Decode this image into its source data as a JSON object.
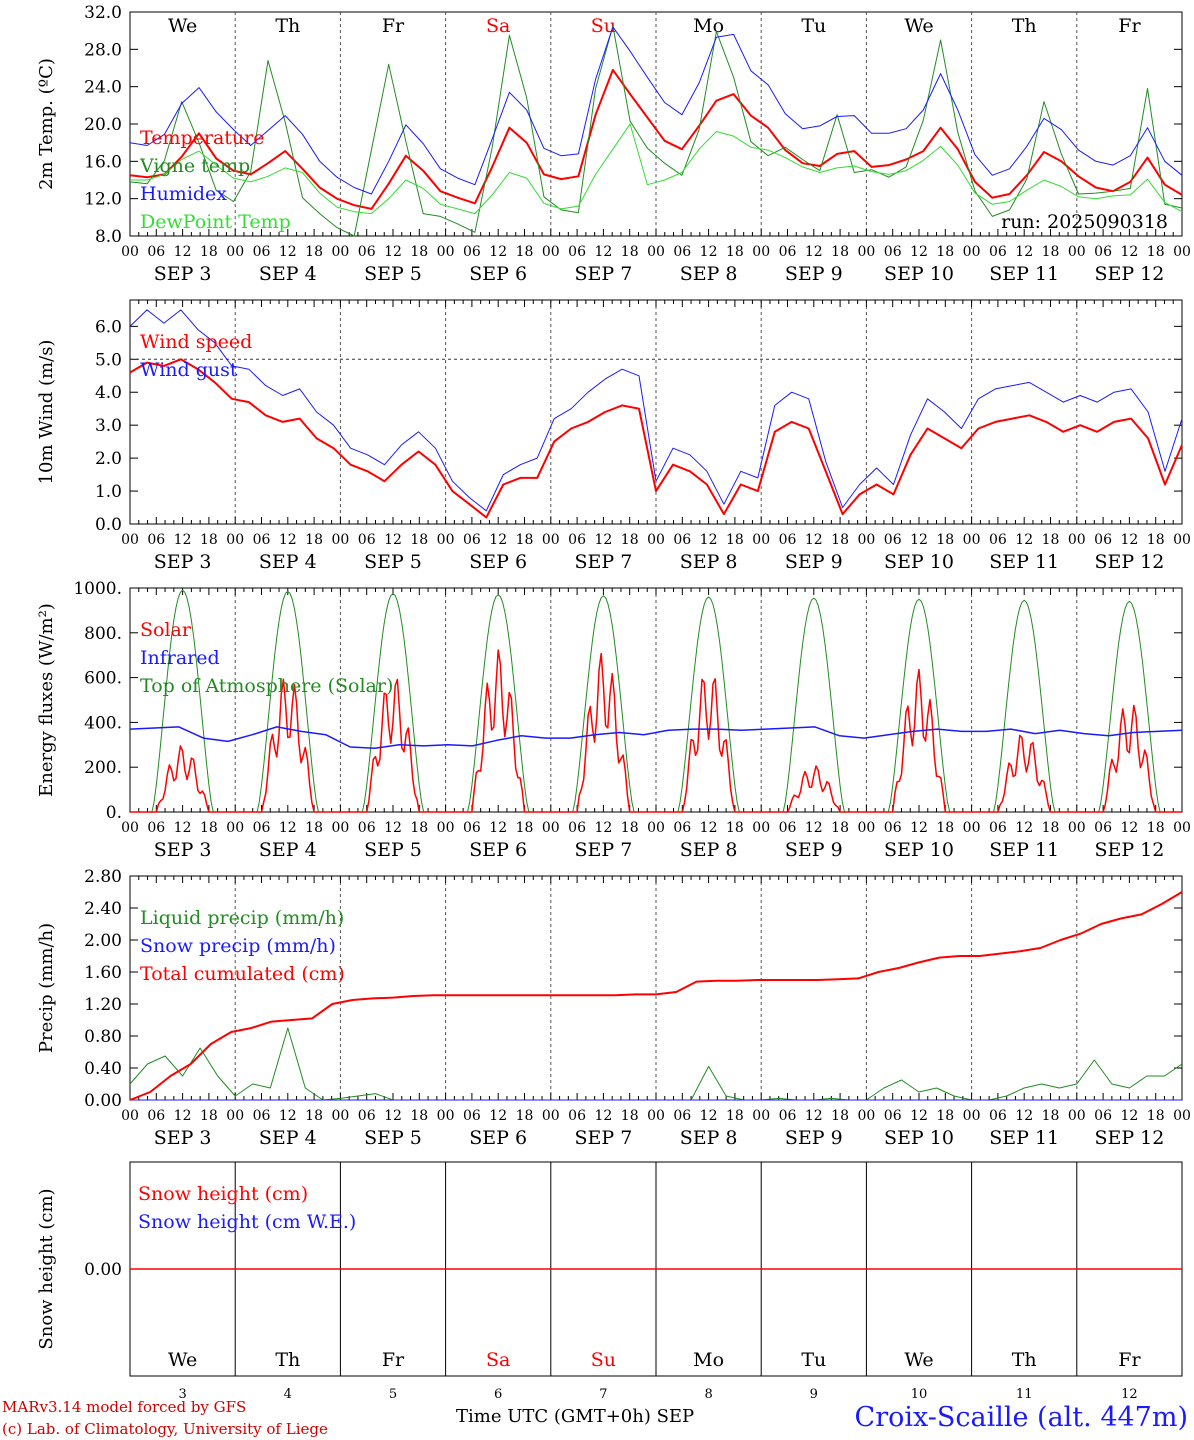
{
  "chart_data": [
    {
      "type": "line",
      "ylabel": "2m Temp. (ºC)",
      "ylim": [
        8,
        32
      ],
      "yticks": [
        "8.0",
        "12.0",
        "16.0",
        "20.0",
        "24.0",
        "28.0",
        "32.0"
      ],
      "day_names": [
        "We",
        "Th",
        "Fr",
        "Sa",
        "Su",
        "Mo",
        "Tu",
        "We",
        "Th",
        "Fr"
      ],
      "weekend_color": "#ff0000",
      "run_label": "run: 2025090318",
      "x_hours_step": 6,
      "x_start": "2025-09-03 00:00 UTC",
      "series": [
        {
          "name": "Temperature",
          "color": "#ff0000",
          "width": 2,
          "values": [
            14.5,
            14.3,
            14.6,
            16.5,
            19.0,
            16.3,
            15.0,
            14.6,
            15.8,
            17.1,
            15.2,
            13.2,
            12.0,
            11.3,
            10.9,
            13.6,
            16.6,
            15.0,
            12.8,
            12.1,
            11.5,
            15.4,
            19.6,
            18.0,
            14.6,
            14.1,
            14.4,
            21.0,
            25.8,
            23.2,
            20.7,
            18.2,
            17.3,
            19.8,
            22.5,
            23.2,
            20.9,
            19.6,
            17.2,
            15.8,
            15.5,
            16.8,
            17.1,
            15.4,
            15.6,
            16.2,
            17.1,
            19.6,
            17.3,
            13.8,
            12.1,
            12.5,
            14.5,
            17.0,
            16.0,
            14.4,
            13.2,
            12.8,
            13.8,
            16.4,
            13.5,
            12.4
          ]
        },
        {
          "name": "Vigne temp",
          "color": "#228B22",
          "width": 1,
          "values": [
            13.8,
            13.6,
            16.1,
            22.4,
            18.0,
            12.9,
            11.7,
            14.9,
            26.8,
            20.2,
            12.1,
            10.4,
            8.9,
            7.6,
            17.2,
            26.4,
            18.1,
            10.4,
            10.1,
            9.3,
            8.4,
            17.5,
            29.5,
            22.8,
            12.2,
            10.8,
            10.5,
            23.8,
            30.5,
            20.3,
            17.4,
            15.8,
            14.5,
            19.4,
            29.9,
            25.0,
            18.1,
            16.6,
            17.5,
            16.2,
            15.0,
            21.0,
            14.8,
            15.1,
            14.3,
            15.4,
            20.4,
            29.0,
            19.1,
            12.8,
            10.1,
            10.8,
            14.1,
            22.4,
            16.8,
            12.5,
            12.6,
            12.8,
            13.1,
            23.8,
            11.4,
            11.0
          ]
        },
        {
          "name": "Humidex",
          "color": "#1a1aff",
          "width": 1,
          "values": [
            18.0,
            17.7,
            18.9,
            22.2,
            23.9,
            21.3,
            19.4,
            17.7,
            19.3,
            20.9,
            18.9,
            16.0,
            14.3,
            13.2,
            12.5,
            16.0,
            19.9,
            17.9,
            15.2,
            14.2,
            13.5,
            18.4,
            23.4,
            21.5,
            17.4,
            16.6,
            16.8,
            24.8,
            30.4,
            27.8,
            25.0,
            22.3,
            21.0,
            24.4,
            29.3,
            29.6,
            25.7,
            24.2,
            21.1,
            19.5,
            19.8,
            20.8,
            20.9,
            19.0,
            19.0,
            19.5,
            21.5,
            25.4,
            21.5,
            16.7,
            14.5,
            15.2,
            17.6,
            20.6,
            19.4,
            17.2,
            16.0,
            15.6,
            16.6,
            19.6,
            16.0,
            14.5
          ]
        },
        {
          "name": "DewPoint Temp",
          "color": "#33dd33",
          "width": 1,
          "values": [
            14.0,
            14.0,
            14.6,
            16.2,
            17.1,
            15.6,
            14.2,
            13.8,
            14.4,
            15.3,
            14.8,
            12.6,
            11.1,
            10.6,
            10.4,
            12.0,
            14.0,
            13.1,
            11.4,
            10.9,
            10.4,
            12.4,
            14.8,
            14.2,
            11.5,
            10.9,
            11.2,
            14.6,
            17.3,
            20.0,
            13.5,
            14.0,
            14.8,
            17.3,
            19.2,
            18.7,
            17.5,
            17.2,
            16.4,
            15.4,
            14.8,
            15.3,
            15.5,
            14.9,
            14.6,
            15.0,
            16.1,
            17.6,
            15.6,
            12.6,
            11.4,
            11.7,
            12.9,
            14.0,
            13.3,
            12.2,
            12.0,
            12.3,
            12.4,
            14.1,
            11.6,
            10.6
          ]
        }
      ]
    },
    {
      "type": "line",
      "ylabel": "10m Wind (m/s)",
      "ylim": [
        0,
        6.8
      ],
      "yticks": [
        "0.0",
        "1.0",
        "2.0",
        "3.0",
        "4.0",
        "5.0",
        "6.0"
      ],
      "ref_line": 5.0,
      "series": [
        {
          "name": "Wind speed",
          "color": "#ff0000",
          "width": 2,
          "values": [
            4.6,
            4.9,
            4.8,
            5.0,
            4.7,
            4.3,
            3.8,
            3.7,
            3.3,
            3.1,
            3.2,
            2.6,
            2.3,
            1.8,
            1.6,
            1.3,
            1.8,
            2.2,
            1.8,
            1.0,
            0.6,
            0.2,
            1.2,
            1.4,
            1.4,
            2.5,
            2.9,
            3.1,
            3.4,
            3.6,
            3.5,
            1.0,
            1.8,
            1.6,
            1.2,
            0.3,
            1.2,
            1.0,
            2.8,
            3.1,
            2.9,
            1.6,
            0.3,
            0.9,
            1.2,
            0.9,
            2.1,
            2.9,
            2.6,
            2.3,
            2.9,
            3.1,
            3.2,
            3.3,
            3.1,
            2.8,
            3.0,
            2.8,
            3.1,
            3.2,
            2.6,
            1.2,
            2.4
          ]
        },
        {
          "name": "Wind gust",
          "color": "#1a1aff",
          "width": 1,
          "values": [
            6.0,
            6.5,
            6.1,
            6.5,
            5.9,
            5.5,
            4.8,
            4.7,
            4.2,
            3.9,
            4.1,
            3.4,
            3.0,
            2.3,
            2.1,
            1.8,
            2.4,
            2.8,
            2.3,
            1.3,
            0.8,
            0.4,
            1.5,
            1.8,
            2.0,
            3.2,
            3.5,
            4.0,
            4.4,
            4.7,
            4.5,
            1.3,
            2.3,
            2.1,
            1.6,
            0.6,
            1.6,
            1.4,
            3.6,
            4.0,
            3.8,
            1.9,
            0.5,
            1.2,
            1.7,
            1.2,
            2.7,
            3.8,
            3.4,
            2.9,
            3.8,
            4.1,
            4.2,
            4.3,
            4.0,
            3.7,
            3.9,
            3.7,
            4.0,
            4.1,
            3.4,
            1.6,
            3.2
          ]
        }
      ]
    },
    {
      "type": "line",
      "ylabel": "Energy fluxes (W/m²)",
      "ylim": [
        0,
        1000
      ],
      "yticks": [
        "0.",
        "200.",
        "400.",
        "600.",
        "800.",
        "1000."
      ],
      "series": [
        {
          "name": "Solar",
          "color": "#ff0000",
          "width": 1.5,
          "values_daily_peak": [
            300,
            620,
            620,
            730,
            720,
            650,
            210,
            640,
            360,
            500
          ]
        },
        {
          "name": "Infrared",
          "color": "#1a1aff",
          "width": 1.5,
          "values": [
            370,
            375,
            380,
            330,
            315,
            345,
            380,
            360,
            345,
            290,
            285,
            300,
            295,
            300,
            295,
            320,
            340,
            330,
            330,
            345,
            355,
            345,
            365,
            370,
            370,
            365,
            370,
            375,
            380,
            340,
            330,
            345,
            360,
            370,
            360,
            360,
            370,
            350,
            365,
            350,
            340,
            355,
            360,
            365
          ]
        },
        {
          "name": "Top of Atmosphere (Solar)",
          "color": "#228B22",
          "width": 1,
          "values_daily_peak": [
            990,
            985,
            975,
            970,
            965,
            960,
            955,
            950,
            945,
            940
          ]
        }
      ]
    },
    {
      "type": "line",
      "ylabel": "Precip (mm/h)",
      "ylim": [
        0,
        2.8
      ],
      "yticks": [
        "0.00",
        "0.40",
        "0.80",
        "1.20",
        "1.60",
        "2.00",
        "2.40",
        "2.80"
      ],
      "series": [
        {
          "name": "Liquid precip (mm/h)",
          "color": "#228B22",
          "width": 1,
          "values": [
            0.2,
            0.45,
            0.55,
            0.3,
            0.65,
            0.3,
            0.05,
            0.2,
            0.15,
            0.9,
            0.15,
            0.0,
            0.02,
            0.05,
            0.08,
            0.0,
            0.0,
            0.0,
            0.0,
            0.0,
            0.0,
            0.0,
            0.0,
            0.0,
            0.0,
            0.0,
            0.0,
            0.0,
            0.0,
            0.0,
            0.0,
            0.0,
            0.0,
            0.42,
            0.05,
            0.0,
            0.0,
            0.02,
            0.0,
            0.0,
            0.02,
            0.0,
            0.0,
            0.15,
            0.25,
            0.1,
            0.15,
            0.05,
            0.0,
            0.0,
            0.05,
            0.15,
            0.2,
            0.15,
            0.2,
            0.5,
            0.2,
            0.15,
            0.3,
            0.3,
            0.45
          ]
        },
        {
          "name": "Snow precip (mm/h)",
          "color": "#1a1aff",
          "width": 1,
          "values": [
            0,
            0,
            0,
            0,
            0,
            0,
            0,
            0,
            0,
            0,
            0,
            0
          ]
        },
        {
          "name": "Total cumulated (cm)",
          "color": "#ff0000",
          "width": 2,
          "values": [
            0.0,
            0.1,
            0.3,
            0.45,
            0.7,
            0.85,
            0.9,
            0.98,
            1.0,
            1.02,
            1.2,
            1.25,
            1.27,
            1.28,
            1.3,
            1.31,
            1.31,
            1.31,
            1.31,
            1.31,
            1.31,
            1.31,
            1.31,
            1.31,
            1.31,
            1.32,
            1.32,
            1.35,
            1.48,
            1.49,
            1.49,
            1.5,
            1.5,
            1.5,
            1.5,
            1.51,
            1.52,
            1.6,
            1.65,
            1.72,
            1.78,
            1.8,
            1.8,
            1.83,
            1.86,
            1.9,
            2.0,
            2.08,
            2.2,
            2.27,
            2.32,
            2.45,
            2.6
          ]
        }
      ]
    },
    {
      "type": "line",
      "ylabel": "Snow height (cm)",
      "ylim": [
        -1,
        1
      ],
      "yticks": [
        "0.00"
      ],
      "series": [
        {
          "name": "Snow height (cm)",
          "color": "#ff0000",
          "width": 1.5,
          "values": [
            0.0,
            0.0
          ]
        },
        {
          "name": "Snow height (cm W.E.)",
          "color": "#1a1aff",
          "width": 1,
          "values": []
        }
      ]
    }
  ],
  "date_labels": [
    "SEP   3",
    "SEP   4",
    "SEP   5",
    "SEP   6",
    "SEP   7",
    "SEP   8",
    "SEP   9",
    "SEP  10",
    "SEP  11",
    "SEP  12"
  ],
  "hour_labels": [
    "00",
    "06",
    "12",
    "18"
  ],
  "hour_label_end": "00",
  "bottom_day_numbers": [
    "3",
    "4",
    "5",
    "6",
    "7",
    "8",
    "9",
    "10",
    "11",
    "12"
  ],
  "footer": {
    "model_line": "MARv3.14 model forced by GFS",
    "lab_line": "(c) Lab. of Climatology, University of Liege",
    "time_axis": "Time UTC (GMT+0h) SEP",
    "station": "Croix-Scaille (alt. 447m)"
  }
}
